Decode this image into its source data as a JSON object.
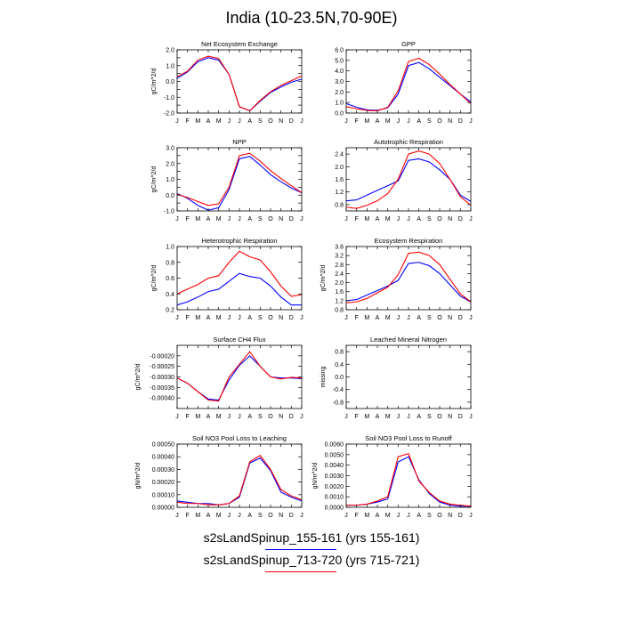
{
  "title": "India (10-23.5N,70-90E)",
  "colors": {
    "run1": "#0000ff",
    "run2": "#ff0000"
  },
  "legend": [
    {
      "label": "s2sLandSpinup_155-161 (yrs 155-161)",
      "color": "#0000ff"
    },
    {
      "label": "s2sLandSpinup_713-720 (yrs 715-721)",
      "color": "#ff0000"
    }
  ],
  "chart_data": [
    {
      "type": "line",
      "title": "Net Ecosystem Exchange",
      "ylabel": "gC/m^2/d",
      "categories": [
        "J",
        "F",
        "M",
        "A",
        "M",
        "J",
        "J",
        "A",
        "S",
        "O",
        "N",
        "D",
        "J"
      ],
      "ylim": [
        -2.0,
        2.0
      ],
      "yticks": [
        -2.0,
        -1.5,
        -1.0,
        -0.5,
        0.0,
        0.5,
        1.0,
        1.5,
        2.0
      ],
      "yticklabels": [
        "-2.0",
        "",
        "-1.0",
        "",
        "0.0",
        "",
        "1.0",
        "",
        "2.0"
      ],
      "series": [
        {
          "color": "#0000ff",
          "values": [
            0.2,
            0.6,
            1.25,
            1.5,
            1.35,
            0.45,
            -1.6,
            -1.85,
            -1.25,
            -0.7,
            -0.35,
            -0.05,
            0.15
          ]
        },
        {
          "color": "#ff0000",
          "values": [
            0.3,
            0.65,
            1.35,
            1.6,
            1.45,
            0.45,
            -1.6,
            -1.85,
            -1.2,
            -0.65,
            -0.25,
            0.05,
            0.35
          ]
        }
      ]
    },
    {
      "type": "line",
      "title": "GPP",
      "ylabel": "",
      "categories": [
        "J",
        "F",
        "M",
        "A",
        "M",
        "J",
        "J",
        "A",
        "S",
        "O",
        "N",
        "D",
        "J"
      ],
      "ylim": [
        0.0,
        6.0
      ],
      "yticks": [
        0.0,
        1.0,
        2.0,
        3.0,
        4.0,
        5.0,
        6.0
      ],
      "yticklabels": [
        "0.0",
        "1.0",
        "2.0",
        "3.0",
        "4.0",
        "5.0",
        "6.0"
      ],
      "series": [
        {
          "color": "#0000ff",
          "values": [
            0.9,
            0.55,
            0.3,
            0.25,
            0.5,
            1.8,
            4.5,
            4.8,
            4.2,
            3.4,
            2.6,
            1.8,
            1.05
          ]
        },
        {
          "color": "#ff0000",
          "values": [
            0.6,
            0.4,
            0.25,
            0.2,
            0.55,
            2.1,
            4.9,
            5.2,
            4.6,
            3.7,
            2.7,
            1.8,
            0.9
          ]
        }
      ]
    },
    {
      "type": "line",
      "title": "NPP",
      "ylabel": "gC/m^2/d",
      "categories": [
        "J",
        "F",
        "M",
        "A",
        "M",
        "J",
        "J",
        "A",
        "S",
        "O",
        "N",
        "D",
        "J"
      ],
      "ylim": [
        -1.0,
        3.0
      ],
      "yticks": [
        -1.0,
        -0.5,
        0.0,
        0.5,
        1.0,
        1.5,
        2.0,
        2.5,
        3.0
      ],
      "yticklabels": [
        "-1.0",
        "",
        "0.0",
        "",
        "1.0",
        "",
        "2.0",
        "",
        "3.0"
      ],
      "series": [
        {
          "color": "#0000ff",
          "values": [
            0.1,
            -0.2,
            -0.65,
            -0.95,
            -0.8,
            0.35,
            2.3,
            2.45,
            1.9,
            1.3,
            0.85,
            0.45,
            0.15
          ]
        },
        {
          "color": "#ff0000",
          "values": [
            0.05,
            -0.15,
            -0.4,
            -0.65,
            -0.55,
            0.5,
            2.5,
            2.65,
            2.15,
            1.55,
            1.05,
            0.6,
            0.15
          ]
        }
      ]
    },
    {
      "type": "line",
      "title": "Autotrophic Respiration",
      "ylabel": "",
      "categories": [
        "J",
        "F",
        "M",
        "A",
        "M",
        "J",
        "J",
        "A",
        "S",
        "O",
        "N",
        "D",
        "J"
      ],
      "ylim": [
        0.6,
        2.6
      ],
      "yticks": [
        0.8,
        1.2,
        1.6,
        2.0,
        2.4
      ],
      "yticklabels": [
        "0.8",
        "1.2",
        "1.6",
        "2.0",
        "2.4"
      ],
      "series": [
        {
          "color": "#0000ff",
          "values": [
            0.92,
            0.95,
            1.1,
            1.25,
            1.4,
            1.55,
            2.2,
            2.25,
            2.15,
            1.9,
            1.6,
            1.1,
            0.9
          ]
        },
        {
          "color": "#ff0000",
          "values": [
            0.72,
            0.68,
            0.78,
            0.92,
            1.15,
            1.6,
            2.4,
            2.5,
            2.4,
            2.1,
            1.6,
            1.05,
            0.78
          ]
        }
      ]
    },
    {
      "type": "line",
      "title": "Heterotrophic Respiration",
      "ylabel": "gC/m^2/d",
      "categories": [
        "J",
        "F",
        "M",
        "A",
        "M",
        "J",
        "J",
        "A",
        "S",
        "O",
        "N",
        "D",
        "J"
      ],
      "ylim": [
        0.2,
        1.0
      ],
      "yticks": [
        0.2,
        0.4,
        0.6,
        0.8,
        1.0
      ],
      "yticklabels": [
        "0.2",
        "0.4",
        "0.6",
        "0.8",
        "1.0"
      ],
      "series": [
        {
          "color": "#0000ff",
          "values": [
            0.26,
            0.3,
            0.36,
            0.43,
            0.46,
            0.56,
            0.66,
            0.62,
            0.6,
            0.5,
            0.36,
            0.26,
            0.26
          ]
        },
        {
          "color": "#ff0000",
          "values": [
            0.4,
            0.46,
            0.52,
            0.6,
            0.63,
            0.8,
            0.94,
            0.87,
            0.83,
            0.68,
            0.5,
            0.37,
            0.39
          ]
        }
      ]
    },
    {
      "type": "line",
      "title": "Ecosystem Respiration",
      "ylabel": "gC/m^2/d",
      "categories": [
        "J",
        "F",
        "M",
        "A",
        "M",
        "J",
        "J",
        "A",
        "S",
        "O",
        "N",
        "D",
        "J"
      ],
      "ylim": [
        0.8,
        3.6
      ],
      "yticks": [
        0.8,
        1.2,
        1.6,
        2.0,
        2.4,
        2.8,
        3.2,
        3.6
      ],
      "yticklabels": [
        "0.8",
        "1.2",
        "1.6",
        "2.0",
        "2.4",
        "2.8",
        "3.2",
        "3.6"
      ],
      "series": [
        {
          "color": "#0000ff",
          "values": [
            1.2,
            1.25,
            1.45,
            1.65,
            1.85,
            2.1,
            2.85,
            2.9,
            2.75,
            2.4,
            1.9,
            1.4,
            1.15
          ]
        },
        {
          "color": "#ff0000",
          "values": [
            1.1,
            1.15,
            1.3,
            1.55,
            1.8,
            2.35,
            3.3,
            3.35,
            3.2,
            2.8,
            2.15,
            1.5,
            1.15
          ]
        }
      ]
    },
    {
      "type": "line",
      "title": "Surface CH4 Flux",
      "ylabel": "gC/m^2/d",
      "categories": [
        "J",
        "F",
        "M",
        "A",
        "M",
        "J",
        "J",
        "A",
        "S",
        "O",
        "N",
        "D",
        "J"
      ],
      "ylim": [
        -0.00045,
        -0.00015
      ],
      "yticks": [
        -0.0004,
        -0.00035,
        -0.0003,
        -0.00025,
        -0.0002
      ],
      "yticklabels": [
        "-0.00040",
        "-0.00035",
        "-0.00030",
        "-0.00025",
        "-0.00020"
      ],
      "series": [
        {
          "color": "#0000ff",
          "values": [
            -0.000305,
            -0.00033,
            -0.00037,
            -0.000405,
            -0.00041,
            -0.000315,
            -0.000245,
            -0.0002,
            -0.00025,
            -0.0003,
            -0.000305,
            -0.000305,
            -0.000308
          ]
        },
        {
          "color": "#ff0000",
          "values": [
            -0.000305,
            -0.00033,
            -0.00037,
            -0.00041,
            -0.000415,
            -0.0003,
            -0.00024,
            -0.00018,
            -0.00025,
            -0.0003,
            -0.00031,
            -0.000302,
            -0.000305
          ]
        }
      ]
    },
    {
      "type": "line",
      "title": "Leached Mineral Nitrogen",
      "ylabel": "missing",
      "categories": [
        "J",
        "F",
        "M",
        "A",
        "M",
        "J",
        "J",
        "A",
        "S",
        "O",
        "N",
        "D",
        "J"
      ],
      "ylim": [
        -1.0,
        1.0
      ],
      "yticks": [
        -0.8,
        -0.4,
        0.0,
        0.4,
        0.8
      ],
      "yticklabels": [
        "-0.8",
        "-0.4",
        "0.0",
        "0.4",
        "0.8"
      ],
      "series": []
    },
    {
      "type": "line",
      "title": "Soil NO3 Pool Loss to Leaching",
      "ylabel": "gN/m^2/d",
      "categories": [
        "J",
        "F",
        "M",
        "A",
        "M",
        "J",
        "J",
        "A",
        "S",
        "O",
        "N",
        "D",
        "J"
      ],
      "ylim": [
        0.0,
        0.0005
      ],
      "yticks": [
        0.0,
        0.0001,
        0.0002,
        0.0003,
        0.0004,
        0.0005
      ],
      "yticklabels": [
        "0.00000",
        "0.00010",
        "0.00020",
        "0.00030",
        "0.00040",
        "0.00050"
      ],
      "series": [
        {
          "color": "#0000ff",
          "values": [
            5e-05,
            4e-05,
            3e-05,
            3e-05,
            2e-05,
            3e-05,
            8e-05,
            0.00035,
            0.00039,
            0.00029,
            0.00012,
            8e-05,
            5e-05
          ]
        },
        {
          "color": "#ff0000",
          "values": [
            4e-05,
            3e-05,
            3e-05,
            2e-05,
            2e-05,
            3e-05,
            9e-05,
            0.00036,
            0.00041,
            0.0003,
            0.00014,
            9e-05,
            6e-05
          ]
        }
      ]
    },
    {
      "type": "line",
      "title": "Soil NO3 Pool Loss to Runoff",
      "ylabel": "gN/m^2/d",
      "categories": [
        "J",
        "F",
        "M",
        "A",
        "M",
        "J",
        "J",
        "A",
        "S",
        "O",
        "N",
        "D",
        "J"
      ],
      "ylim": [
        0.0,
        0.006
      ],
      "yticks": [
        0.0,
        0.001,
        0.002,
        0.003,
        0.004,
        0.005,
        0.006
      ],
      "yticklabels": [
        "0.0000",
        "0.0010",
        "0.0020",
        "0.0030",
        "0.0040",
        "0.0050",
        "0.0060"
      ],
      "series": [
        {
          "color": "#0000ff",
          "values": [
            0.0002,
            0.0002,
            0.0003,
            0.0005,
            0.0008,
            0.0043,
            0.0048,
            0.0026,
            0.0013,
            0.0005,
            0.0002,
            0.0001,
            0.0001
          ]
        },
        {
          "color": "#ff0000",
          "values": [
            0.0002,
            0.0002,
            0.0003,
            0.0006,
            0.001,
            0.0048,
            0.0051,
            0.0025,
            0.0014,
            0.0006,
            0.0003,
            0.0002,
            0.0001
          ]
        }
      ]
    }
  ]
}
